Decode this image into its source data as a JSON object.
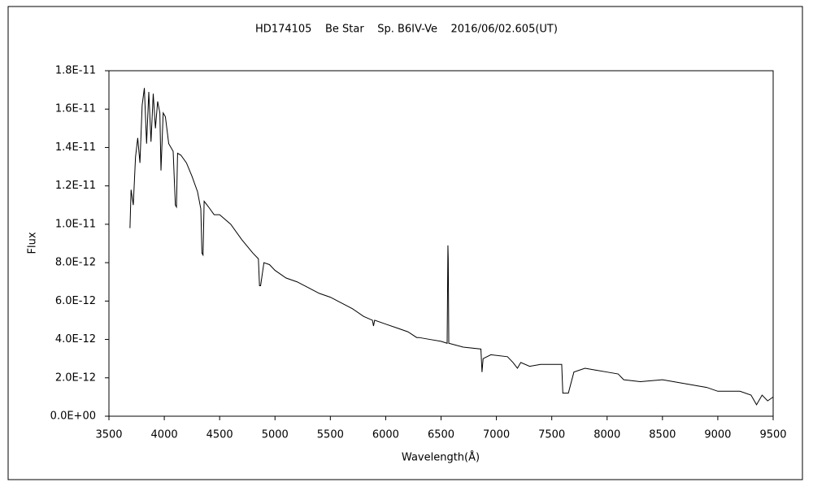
{
  "chart_data": {
    "type": "line",
    "title": "HD174105    Be Star    Sp. B6IV-Ve    2016/06/02.605(UT)",
    "xlabel": "Wavelength(Å)",
    "ylabel": "Flux",
    "xlim": [
      3500,
      9500
    ],
    "xticks": [
      3500,
      4000,
      4500,
      5000,
      5500,
      6000,
      6500,
      7000,
      7500,
      8000,
      8500,
      9000,
      9500
    ],
    "ylim": [
      0,
      1.8e-11
    ],
    "yticks": [
      {
        "value": 0,
        "label": "0.0E+00"
      },
      {
        "value": 2e-12,
        "label": "2.0E-12"
      },
      {
        "value": 4e-12,
        "label": "4.0E-12"
      },
      {
        "value": 6e-12,
        "label": "6.0E-12"
      },
      {
        "value": 8e-12,
        "label": "8.0E-12"
      },
      {
        "value": 1e-11,
        "label": "1.0E-11"
      },
      {
        "value": 1.2e-11,
        "label": "1.2E-11"
      },
      {
        "value": 1.4e-11,
        "label": "1.4E-11"
      },
      {
        "value": 1.6e-11,
        "label": "1.6E-11"
      },
      {
        "value": 1.8e-11,
        "label": "1.8E-11"
      }
    ],
    "color": "#000000",
    "x": [
      3690,
      3700,
      3720,
      3740,
      3760,
      3780,
      3800,
      3820,
      3840,
      3860,
      3880,
      3900,
      3920,
      3940,
      3960,
      3970,
      3990,
      4010,
      4040,
      4080,
      4100,
      4110,
      4120,
      4150,
      4200,
      4250,
      4300,
      4330,
      4340,
      4350,
      4360,
      4400,
      4450,
      4500,
      4600,
      4700,
      4800,
      4850,
      4860,
      4870,
      4900,
      4950,
      5000,
      5100,
      5200,
      5300,
      5400,
      5500,
      5600,
      5700,
      5800,
      5880,
      5890,
      5900,
      6000,
      6100,
      6200,
      6280,
      6300,
      6400,
      6500,
      6555,
      6562,
      6565,
      6570,
      6700,
      6860,
      6870,
      6880,
      6950,
      7100,
      7150,
      7190,
      7220,
      7300,
      7400,
      7590,
      7600,
      7650,
      7700,
      7800,
      7900,
      8000,
      8100,
      8150,
      8300,
      8500,
      8700,
      8900,
      9000,
      9100,
      9200,
      9300,
      9350,
      9400,
      9450,
      9500
    ],
    "values": [
      9.8e-12,
      1.18e-11,
      1.1e-11,
      1.35e-11,
      1.45e-11,
      1.32e-11,
      1.62e-11,
      1.71e-11,
      1.42e-11,
      1.69e-11,
      1.43e-11,
      1.68e-11,
      1.5e-11,
      1.64e-11,
      1.58e-11,
      1.28e-11,
      1.58e-11,
      1.56e-11,
      1.42e-11,
      1.38e-11,
      1.1e-11,
      1.09e-11,
      1.37e-11,
      1.36e-11,
      1.32e-11,
      1.25e-11,
      1.17e-11,
      1.08e-11,
      8.5e-12,
      8.4e-12,
      1.12e-11,
      1.09e-11,
      1.05e-11,
      1.05e-11,
      1e-11,
      9.2e-12,
      8.5e-12,
      8.2e-12,
      6.8e-12,
      6.8e-12,
      8e-12,
      7.9e-12,
      7.6e-12,
      7.2e-12,
      7e-12,
      6.7e-12,
      6.4e-12,
      6.2e-12,
      5.9e-12,
      5.6e-12,
      5.2e-12,
      5e-12,
      4.7e-12,
      5e-12,
      4.8e-12,
      4.6e-12,
      4.4e-12,
      4.1e-12,
      4.1e-12,
      4e-12,
      3.9e-12,
      3.8e-12,
      8.9e-12,
      8.2e-12,
      3.8e-12,
      3.6e-12,
      3.5e-12,
      2.3e-12,
      3e-12,
      3.2e-12,
      3.1e-12,
      2.8e-12,
      2.5e-12,
      2.8e-12,
      2.6e-12,
      2.7e-12,
      2.7e-12,
      1.2e-12,
      1.2e-12,
      2.3e-12,
      2.5e-12,
      2.4e-12,
      2.3e-12,
      2.2e-12,
      1.9e-12,
      1.8e-12,
      1.9e-12,
      1.7e-12,
      1.5e-12,
      1.3e-12,
      1.3e-12,
      1.3e-12,
      1.1e-12,
      6e-13,
      1.1e-12,
      8e-13,
      1e-12
    ]
  }
}
